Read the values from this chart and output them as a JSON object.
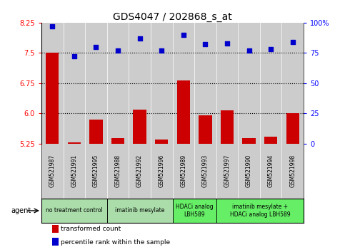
{
  "title": "GDS4047 / 202868_s_at",
  "samples": [
    "GSM521987",
    "GSM521991",
    "GSM521995",
    "GSM521988",
    "GSM521992",
    "GSM521996",
    "GSM521989",
    "GSM521993",
    "GSM521997",
    "GSM521990",
    "GSM521994",
    "GSM521998"
  ],
  "bar_values": [
    7.5,
    5.28,
    5.85,
    5.38,
    6.1,
    5.35,
    6.82,
    5.95,
    6.07,
    5.38,
    5.42,
    6.0
  ],
  "scatter_values": [
    97,
    72,
    80,
    77,
    87,
    77,
    90,
    82,
    83,
    77,
    78,
    84
  ],
  "ylim_left": [
    5.25,
    8.25
  ],
  "ylim_right": [
    0,
    100
  ],
  "yticks_left": [
    5.25,
    6.0,
    6.75,
    7.5,
    8.25
  ],
  "yticks_right": [
    0,
    25,
    50,
    75,
    100
  ],
  "ytick_labels_right": [
    "0",
    "25",
    "50",
    "75",
    "100%"
  ],
  "hlines": [
    7.5,
    6.75,
    6.0
  ],
  "bar_color": "#cc0000",
  "scatter_color": "#0000cc",
  "bg_color": "#cccccc",
  "plot_bg": "#ffffff",
  "agent_groups": [
    {
      "label": "no treatment control",
      "indices": [
        0,
        1,
        2
      ],
      "color": "#aaddaa",
      "bright": false
    },
    {
      "label": "imatinib mesylate",
      "indices": [
        3,
        4,
        5
      ],
      "color": "#aaddaa",
      "bright": false
    },
    {
      "label": "HDACi analog\nLBH589",
      "indices": [
        6,
        7
      ],
      "color": "#66ee66",
      "bright": true
    },
    {
      "label": "imatinib mesylate +\nHDACi analog LBH589",
      "indices": [
        8,
        9,
        10,
        11
      ],
      "color": "#66ee66",
      "bright": true
    }
  ],
  "legend_items": [
    {
      "label": "transformed count",
      "color": "#cc0000"
    },
    {
      "label": "percentile rank within the sample",
      "color": "#0000cc"
    }
  ],
  "title_fontsize": 10,
  "tick_fontsize": 7,
  "bar_width": 0.6
}
